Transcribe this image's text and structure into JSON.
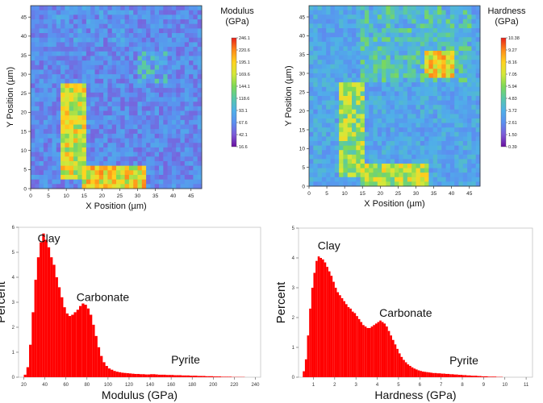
{
  "chart_data": [
    {
      "type": "heatmap",
      "title": "Modulus",
      "title_unit": "(GPa)",
      "xlabel": "X Position (µm)",
      "ylabel": "Y Position (µm)",
      "xlim": [
        0,
        48
      ],
      "ylim": [
        0,
        48
      ],
      "x_ticks": [
        "0",
        "5",
        "10",
        "15",
        "20",
        "25",
        "30",
        "35",
        "40",
        "45"
      ],
      "y_ticks": [
        "0",
        "5",
        "10",
        "15",
        "20",
        "25",
        "30",
        "35",
        "40",
        "45"
      ],
      "colorbar_ticks": [
        "246.1",
        "220.6",
        "195.1",
        "169.6",
        "144.1",
        "118.6",
        "93.1",
        "67.6",
        "42.1",
        "16.6"
      ],
      "colorbar_range": [
        16.6,
        246.1
      ],
      "colormap": [
        "#6a0f9e",
        "#7d5bd8",
        "#5b8ff0",
        "#4fb0e8",
        "#58c8a8",
        "#7ed957",
        "#d4e83a",
        "#ffd21f",
        "#ff8a1a",
        "#e8201a"
      ],
      "background_level": 0.22,
      "features": [
        {
          "label": "stiff-band-left",
          "x": [
            9,
            16
          ],
          "y": [
            3,
            27
          ],
          "level": 0.85
        },
        {
          "label": "stiff-band-bottom",
          "x": [
            15,
            32
          ],
          "y": [
            0,
            6
          ],
          "level": 0.9
        },
        {
          "label": "green-patch",
          "x": [
            30,
            38
          ],
          "y": [
            28,
            36
          ],
          "level": 0.5
        },
        {
          "label": "green-area-top",
          "x": [
            5,
            30
          ],
          "y": [
            38,
            48
          ],
          "level": 0.35
        }
      ]
    },
    {
      "type": "heatmap",
      "title": "Hardness",
      "title_unit": "(GPa)",
      "xlabel": "X Position (µm)",
      "ylabel": "Y Position (µm)",
      "xlim": [
        0,
        48
      ],
      "ylim": [
        0,
        48
      ],
      "x_ticks": [
        "0",
        "5",
        "10",
        "15",
        "20",
        "25",
        "30",
        "35",
        "40",
        "45"
      ],
      "y_ticks": [
        "0",
        "5",
        "10",
        "15",
        "20",
        "25",
        "30",
        "35",
        "40",
        "45"
      ],
      "colorbar_ticks": [
        "10.38",
        "9.27",
        "8.16",
        "7.05",
        "5.94",
        "4.83",
        "3.72",
        "2.61",
        "1.50",
        "0.39"
      ],
      "colorbar_range": [
        0.39,
        10.38
      ],
      "colormap": [
        "#6a0f9e",
        "#7d5bd8",
        "#5b8ff0",
        "#4fb0e8",
        "#58c8a8",
        "#7ed957",
        "#d4e83a",
        "#ffd21f",
        "#ff8a1a",
        "#e8201a"
      ],
      "background_level": 0.3,
      "features": [
        {
          "label": "hard-spot",
          "x": [
            32,
            41
          ],
          "y": [
            29,
            36
          ],
          "level": 0.9
        },
        {
          "label": "green-area-top",
          "x": [
            15,
            45
          ],
          "y": [
            28,
            48
          ],
          "level": 0.55
        },
        {
          "label": "hard-band-left",
          "x": [
            9,
            15
          ],
          "y": [
            3,
            27
          ],
          "level": 0.75
        },
        {
          "label": "hard-band-bottom",
          "x": [
            15,
            33
          ],
          "y": [
            0,
            6
          ],
          "level": 0.8
        }
      ]
    },
    {
      "type": "bar",
      "title": "",
      "xlabel": "Modulus (GPa)",
      "ylabel": "Percent",
      "xlim": [
        15,
        245
      ],
      "ylim": [
        0,
        6
      ],
      "x_ticks": [
        "20",
        "40",
        "60",
        "80",
        "100",
        "120",
        "140",
        "160",
        "180",
        "200",
        "220",
        "240"
      ],
      "y_ticks": [
        "0",
        "1",
        "2",
        "3",
        "4",
        "5",
        "6"
      ],
      "bin_width": 2.5,
      "bin_start": 20,
      "values": [
        0.1,
        0.4,
        1.3,
        2.6,
        3.9,
        4.8,
        5.4,
        5.75,
        5.5,
        5.2,
        4.8,
        4.5,
        4.0,
        3.6,
        3.2,
        2.8,
        2.55,
        2.45,
        2.5,
        2.6,
        2.7,
        2.85,
        2.95,
        2.9,
        2.75,
        2.5,
        2.1,
        1.65,
        1.2,
        0.85,
        0.6,
        0.45,
        0.35,
        0.3,
        0.25,
        0.22,
        0.2,
        0.18,
        0.17,
        0.16,
        0.15,
        0.14,
        0.13,
        0.13,
        0.12,
        0.12,
        0.11,
        0.11,
        0.12,
        0.12,
        0.11,
        0.1,
        0.1,
        0.1,
        0.09,
        0.09,
        0.09,
        0.08,
        0.08,
        0.08,
        0.07,
        0.07,
        0.07,
        0.06,
        0.06,
        0.06,
        0.05,
        0.05,
        0.05,
        0.04,
        0.04,
        0.04,
        0.03,
        0.03,
        0.03,
        0.02,
        0.02,
        0.02,
        0.02,
        0.01,
        0.01,
        0.01,
        0.01,
        0.01
      ],
      "color": "#ff0000",
      "annotations": [
        {
          "text": "Clay",
          "x": 33,
          "y": 5.3
        },
        {
          "text": "Carbonate",
          "x": 70,
          "y": 2.95
        },
        {
          "text": "Pyrite",
          "x": 160,
          "y": 0.45
        }
      ]
    },
    {
      "type": "bar",
      "title": "",
      "xlabel": "Hardness (GPa)",
      "ylabel": "Percent",
      "xlim": [
        0.3,
        11.3
      ],
      "ylim": [
        0,
        5
      ],
      "x_ticks": [
        "1",
        "2",
        "3",
        "4",
        "5",
        "6",
        "7",
        "8",
        "9",
        "10",
        "11"
      ],
      "y_ticks": [
        "0",
        "1",
        "2",
        "3",
        "4",
        "5"
      ],
      "bin_width": 0.1,
      "bin_start": 0.5,
      "values": [
        0.2,
        0.6,
        1.4,
        2.3,
        3.0,
        3.5,
        3.9,
        4.05,
        4.0,
        3.95,
        3.85,
        3.7,
        3.55,
        3.4,
        3.2,
        3.0,
        2.85,
        2.75,
        2.65,
        2.55,
        2.45,
        2.35,
        2.3,
        2.2,
        2.15,
        2.05,
        1.95,
        1.85,
        1.75,
        1.7,
        1.65,
        1.65,
        1.7,
        1.75,
        1.8,
        1.85,
        1.9,
        1.85,
        1.8,
        1.7,
        1.55,
        1.4,
        1.25,
        1.1,
        0.95,
        0.8,
        0.68,
        0.58,
        0.5,
        0.43,
        0.38,
        0.33,
        0.29,
        0.26,
        0.23,
        0.21,
        0.19,
        0.18,
        0.17,
        0.16,
        0.15,
        0.14,
        0.14,
        0.13,
        0.13,
        0.12,
        0.12,
        0.11,
        0.11,
        0.1,
        0.1,
        0.09,
        0.09,
        0.08,
        0.08,
        0.07,
        0.07,
        0.06,
        0.06,
        0.05,
        0.05,
        0.05,
        0.04,
        0.04,
        0.03,
        0.03,
        0.03,
        0.02,
        0.02,
        0.02,
        0.02,
        0.01,
        0.01,
        0.01
      ],
      "color": "#ff0000",
      "annotations": [
        {
          "text": "Clay",
          "x": 1.2,
          "y": 4.2
        },
        {
          "text": "Carbonate",
          "x": 4.1,
          "y": 1.95
        },
        {
          "text": "Pyrite",
          "x": 7.4,
          "y": 0.35
        }
      ]
    }
  ]
}
